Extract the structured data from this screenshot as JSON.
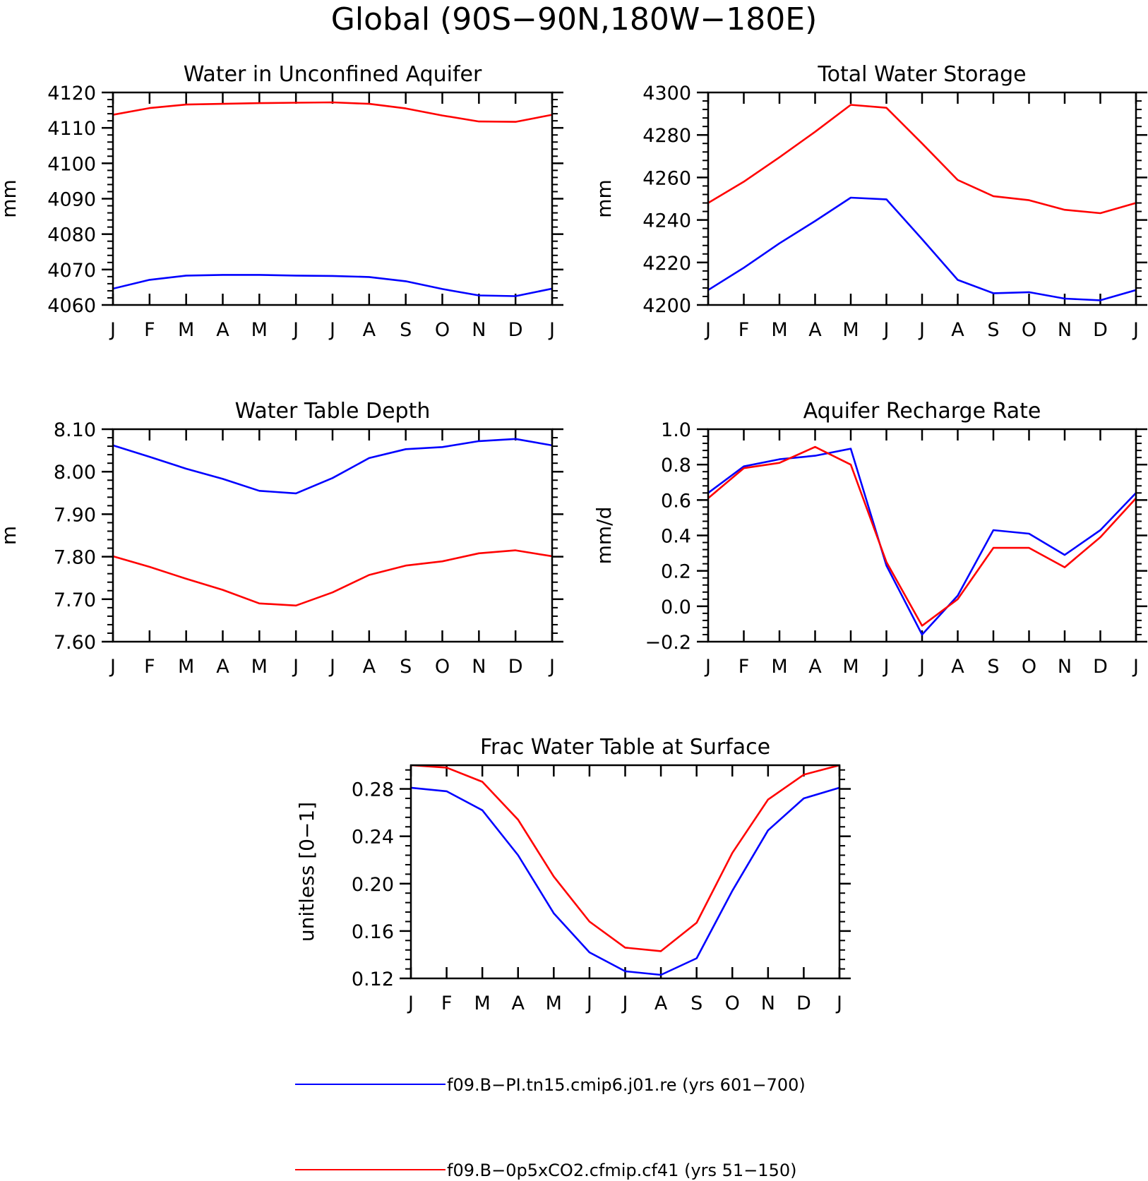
{
  "figure": {
    "title": "Global (90S−90N,180W−180E)"
  },
  "legend": {
    "entries": [
      {
        "label": "f09.B−PI.tn15.cmip6.j01.re (yrs 601−700)",
        "color": "#0000ff"
      },
      {
        "label": "f09.B−0p5xCO2.cfmip.cf41 (yrs 51−150)",
        "color": "#ff0000"
      }
    ]
  },
  "chart_data": [
    {
      "type": "line",
      "title": "Water in Unconfined Aquifer",
      "ylabel": "mm",
      "x": [
        "J",
        "F",
        "M",
        "A",
        "M",
        "J",
        "J",
        "A",
        "S",
        "O",
        "N",
        "D",
        "J"
      ],
      "ylim": [
        4060,
        4120
      ],
      "yticks": [
        4060,
        4070,
        4080,
        4090,
        4100,
        4110,
        4120
      ],
      "ytick_labels": [
        "4060",
        "4070",
        "4080",
        "4090",
        "4100",
        "4110",
        "4120"
      ],
      "series": [
        {
          "color": "#0000ff",
          "values": [
            4064.6,
            4067.1,
            4068.3,
            4068.5,
            4068.5,
            4068.3,
            4068.2,
            4067.9,
            4066.7,
            4064.5,
            4062.7,
            4062.5,
            4064.6
          ]
        },
        {
          "color": "#ff0000",
          "values": [
            4113.7,
            4115.6,
            4116.6,
            4116.8,
            4117.0,
            4117.1,
            4117.2,
            4116.8,
            4115.5,
            4113.5,
            4111.8,
            4111.7,
            4113.7
          ]
        }
      ]
    },
    {
      "type": "line",
      "title": "Total Water Storage",
      "ylabel": "mm",
      "x": [
        "J",
        "F",
        "M",
        "A",
        "M",
        "J",
        "J",
        "A",
        "S",
        "O",
        "N",
        "D",
        "J"
      ],
      "ylim": [
        4200,
        4300
      ],
      "yticks": [
        4200,
        4220,
        4240,
        4260,
        4280,
        4300
      ],
      "ytick_labels": [
        "4200",
        "4220",
        "4240",
        "4260",
        "4280",
        "4300"
      ],
      "series": [
        {
          "color": "#0000ff",
          "values": [
            4207.0,
            4217.5,
            4229.0,
            4239.5,
            4250.5,
            4249.7,
            4231.0,
            4211.8,
            4205.5,
            4206.0,
            4203.0,
            4202.2,
            4207.0
          ]
        },
        {
          "color": "#ff0000",
          "values": [
            4248.0,
            4258.0,
            4269.5,
            4281.5,
            4294.2,
            4292.8,
            4276.0,
            4258.8,
            4251.2,
            4249.3,
            4244.8,
            4243.2,
            4248.0
          ]
        }
      ]
    },
    {
      "type": "line",
      "title": "Water Table Depth",
      "ylabel": "m",
      "x": [
        "J",
        "F",
        "M",
        "A",
        "M",
        "J",
        "J",
        "A",
        "S",
        "O",
        "N",
        "D",
        "J"
      ],
      "ylim": [
        7.6,
        8.1
      ],
      "yticks": [
        7.6,
        7.7,
        7.8,
        7.9,
        8.0,
        8.1
      ],
      "ytick_labels": [
        "7.60",
        "7.70",
        "7.80",
        "7.90",
        "8.00",
        "8.10"
      ],
      "series": [
        {
          "color": "#0000ff",
          "values": [
            8.062,
            8.035,
            8.007,
            7.983,
            7.955,
            7.949,
            7.985,
            8.032,
            8.053,
            8.058,
            8.072,
            8.077,
            8.062
          ]
        },
        {
          "color": "#ff0000",
          "values": [
            7.801,
            7.776,
            7.748,
            7.722,
            7.69,
            7.685,
            7.716,
            7.757,
            7.779,
            7.789,
            7.808,
            7.815,
            7.801
          ]
        }
      ]
    },
    {
      "type": "line",
      "title": "Aquifer Recharge Rate",
      "ylabel": "mm/d",
      "x": [
        "J",
        "F",
        "M",
        "A",
        "M",
        "J",
        "J",
        "A",
        "S",
        "O",
        "N",
        "D",
        "J"
      ],
      "ylim": [
        -0.2,
        1.0
      ],
      "yticks": [
        -0.2,
        0.0,
        0.2,
        0.4,
        0.6,
        0.8,
        1.0
      ],
      "ytick_labels": [
        "−0.2",
        "0.0",
        "0.2",
        "0.4",
        "0.6",
        "0.8",
        "1.0"
      ],
      "series": [
        {
          "color": "#0000ff",
          "values": [
            0.64,
            0.79,
            0.83,
            0.85,
            0.89,
            0.23,
            -0.16,
            0.06,
            0.43,
            0.41,
            0.29,
            0.43,
            0.64
          ]
        },
        {
          "color": "#ff0000",
          "values": [
            0.61,
            0.78,
            0.81,
            0.9,
            0.8,
            0.25,
            -0.11,
            0.04,
            0.33,
            0.33,
            0.22,
            0.39,
            0.61
          ]
        }
      ]
    },
    {
      "type": "line",
      "title": "Frac Water Table at Surface",
      "ylabel": "unitless [0−1]",
      "x": [
        "J",
        "F",
        "M",
        "A",
        "M",
        "J",
        "J",
        "A",
        "S",
        "O",
        "N",
        "D",
        "J"
      ],
      "ylim": [
        0.12,
        0.3
      ],
      "yticks": [
        0.12,
        0.16,
        0.2,
        0.24,
        0.28
      ],
      "ytick_labels": [
        "0.12",
        "0.16",
        "0.20",
        "0.24",
        "0.28"
      ],
      "series": [
        {
          "color": "#0000ff",
          "values": [
            0.281,
            0.278,
            0.262,
            0.224,
            0.175,
            0.142,
            0.126,
            0.123,
            0.137,
            0.194,
            0.245,
            0.272,
            0.281
          ]
        },
        {
          "color": "#ff0000",
          "values": [
            0.3,
            0.298,
            0.286,
            0.254,
            0.206,
            0.168,
            0.146,
            0.143,
            0.167,
            0.226,
            0.271,
            0.292,
            0.3
          ]
        }
      ]
    }
  ]
}
